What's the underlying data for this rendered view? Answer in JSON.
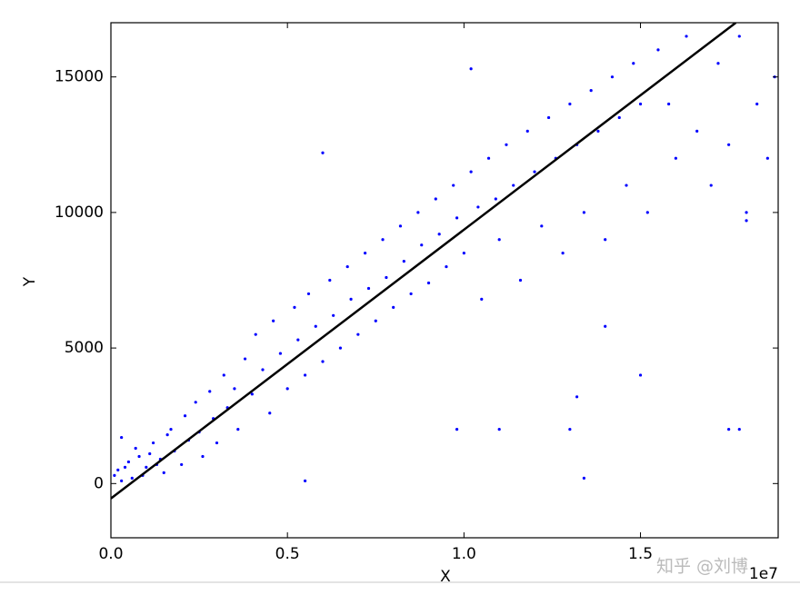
{
  "chart_data": {
    "type": "scatter",
    "x_label": "X",
    "y_label": "Y",
    "x_offset_label": "1e7",
    "watermark": "知乎 @刘博",
    "xlim": [
      0,
      18900000
    ],
    "ylim": [
      -2000,
      17000
    ],
    "xticks": [
      {
        "value": 0,
        "label": "0.0"
      },
      {
        "value": 5000000,
        "label": "0.5"
      },
      {
        "value": 10000000,
        "label": "1.0"
      },
      {
        "value": 15000000,
        "label": "1.5"
      }
    ],
    "yticks": [
      0,
      5000,
      10000,
      15000
    ],
    "series": [
      {
        "color": "#0000ff",
        "x": [
          100000,
          200000,
          300000,
          500000,
          600000,
          800000,
          1000000,
          1200000,
          1400000,
          1500000,
          1700000,
          1800000,
          2000000,
          2100000,
          2200000,
          2400000,
          2500000,
          2600000,
          2800000,
          2900000,
          3000000,
          3200000,
          3300000,
          3500000,
          3600000,
          3800000,
          4000000,
          4100000,
          4300000,
          4500000,
          4600000,
          4800000,
          5000000,
          5200000,
          5300000,
          5500000,
          5600000,
          5800000,
          6000000,
          6200000,
          6300000,
          6500000,
          6700000,
          6800000,
          7000000,
          7200000,
          7300000,
          7500000,
          7700000,
          7800000,
          8000000,
          8200000,
          8300000,
          8500000,
          8700000,
          8800000,
          9000000,
          9200000,
          9300000,
          9500000,
          9700000,
          9800000,
          10000000,
          10200000,
          10400000,
          10500000,
          10700000,
          10900000,
          11000000,
          11200000,
          11400000,
          11600000,
          11800000,
          12000000,
          12200000,
          12400000,
          12600000,
          12800000,
          13000000,
          13200000,
          13400000,
          13600000,
          13800000,
          14000000,
          14200000,
          14400000,
          14600000,
          14800000,
          15000000,
          15200000,
          15500000,
          15800000,
          16000000,
          16300000,
          16600000,
          17000000,
          17200000,
          17500000,
          17800000,
          18000000,
          18300000,
          18600000,
          18800000,
          6000000,
          9800000,
          11000000,
          13000000,
          13400000,
          14000000,
          15000000,
          17500000,
          17800000,
          18000000,
          10200000,
          13200000,
          5500000,
          300000,
          400000,
          700000,
          900000,
          1100000,
          1300000,
          1600000
        ],
        "values": [
          300,
          500,
          100,
          800,
          200,
          1000,
          600,
          1500,
          900,
          400,
          2000,
          1200,
          700,
          2500,
          1600,
          3000,
          1900,
          1000,
          3400,
          2400,
          1500,
          4000,
          2800,
          3500,
          2000,
          4600,
          3300,
          5500,
          4200,
          2600,
          6000,
          4800,
          3500,
          6500,
          5300,
          4000,
          7000,
          5800,
          4500,
          7500,
          6200,
          5000,
          8000,
          6800,
          5500,
          8500,
          7200,
          6000,
          9000,
          7600,
          6500,
          9500,
          8200,
          7000,
          10000,
          8800,
          7400,
          10500,
          9200,
          8000,
          11000,
          9800,
          8500,
          11500,
          10200,
          6800,
          12000,
          10500,
          9000,
          12500,
          11000,
          7500,
          13000,
          11500,
          9500,
          13500,
          12000,
          8500,
          14000,
          12500,
          10000,
          14500,
          13000,
          9000,
          15000,
          13500,
          11000,
          15500,
          14000,
          10000,
          16000,
          14000,
          12000,
          16500,
          13000,
          11000,
          15500,
          12500,
          16500,
          10000,
          14000,
          12000,
          15000,
          12200,
          2000,
          2000,
          2000,
          200,
          5800,
          4000,
          2000,
          2000,
          9700,
          15300,
          3200,
          100,
          1700,
          600,
          1300,
          300,
          1100,
          700,
          1800
        ]
      }
    ],
    "lines": [
      {
        "color": "#000000",
        "x": [
          0,
          17700000
        ],
        "values": [
          -550,
          17000
        ]
      }
    ]
  }
}
